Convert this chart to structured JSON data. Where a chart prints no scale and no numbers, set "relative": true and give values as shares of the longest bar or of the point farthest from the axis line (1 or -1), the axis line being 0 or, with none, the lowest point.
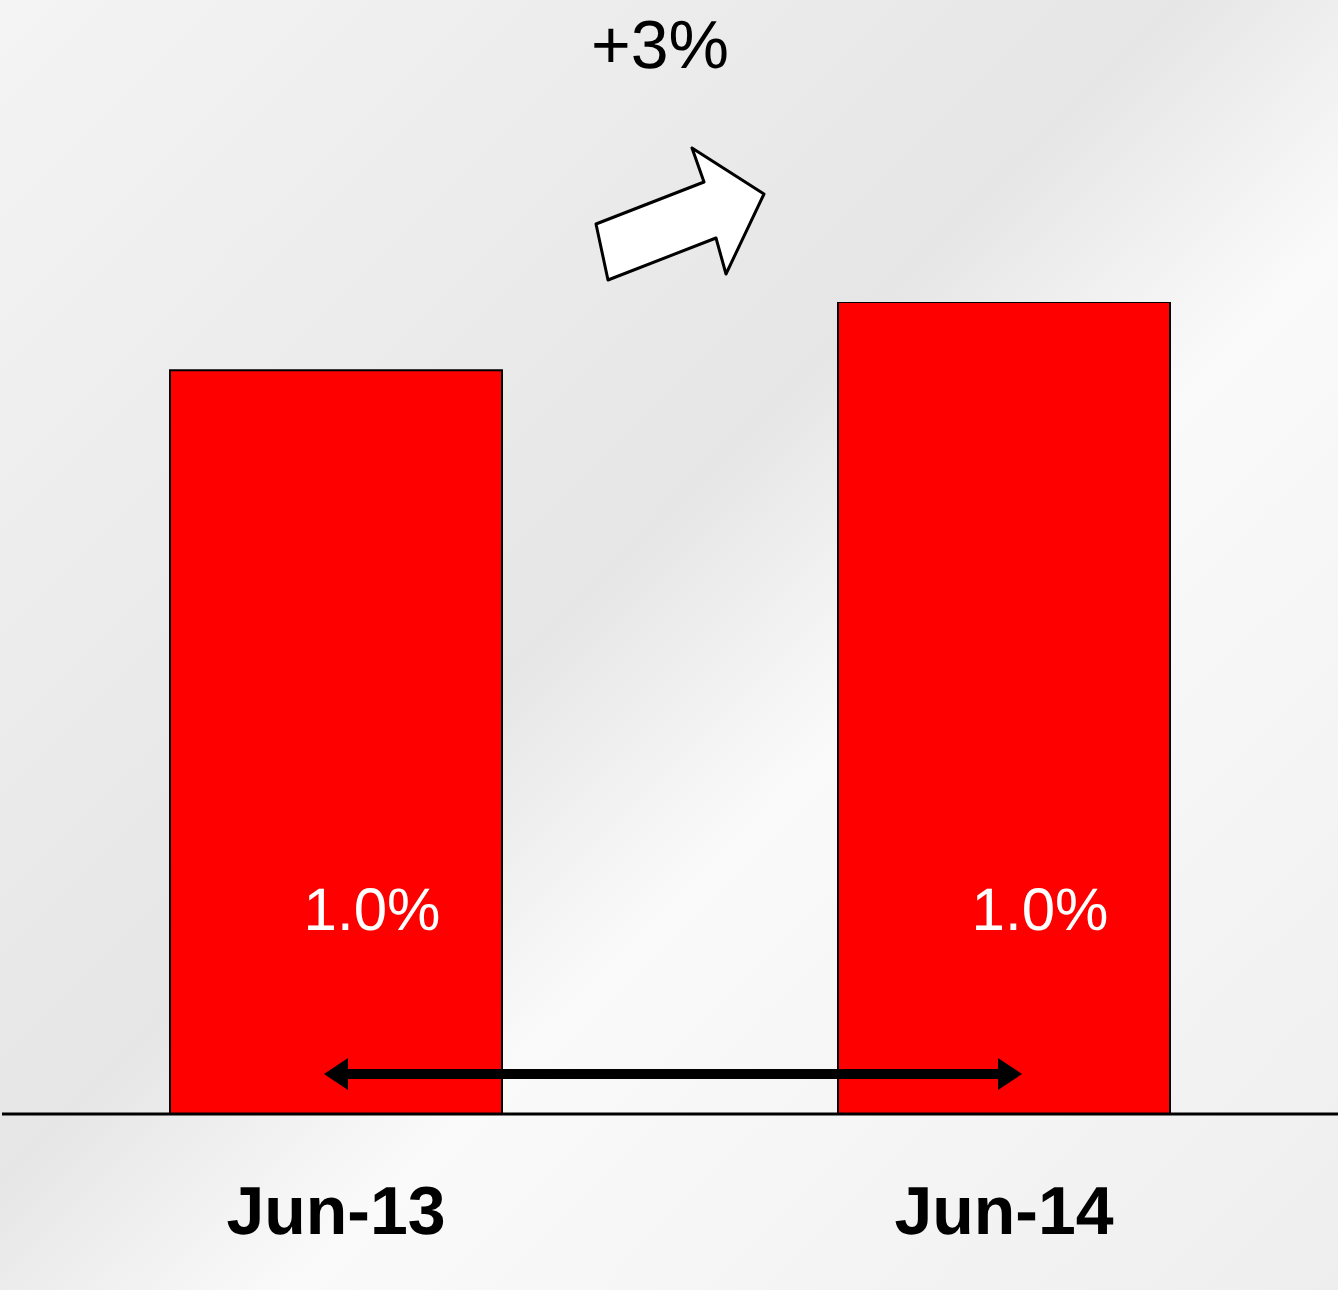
{
  "chart_data": {
    "type": "bar",
    "relative": true,
    "categories": [
      "Jun-13",
      "Jun-14"
    ],
    "series": [
      {
        "color": "#ff0000",
        "values": [
          0.916,
          1
        ]
      }
    ],
    "value_labels": [
      "1.0%",
      "1.0%"
    ],
    "annotations": [
      "+3%"
    ],
    "grid": false,
    "legend": false
  }
}
